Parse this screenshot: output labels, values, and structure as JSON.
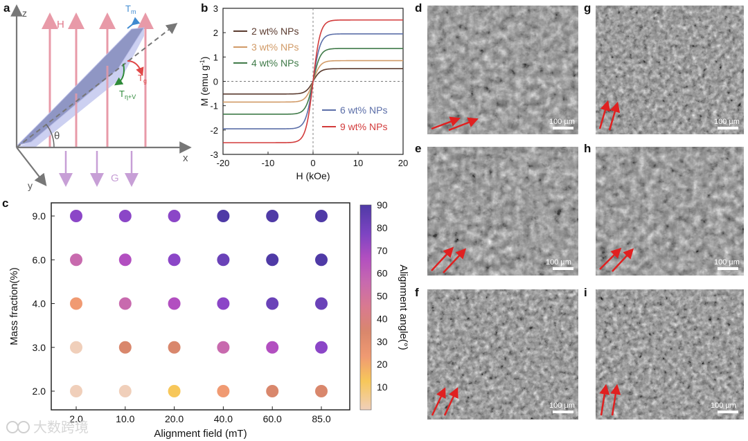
{
  "panel_labels": {
    "a": "a",
    "b": "b",
    "c": "c",
    "d": "d",
    "e": "e",
    "f": "f",
    "g": "g",
    "h": "h",
    "i": "i"
  },
  "panel_a": {
    "axis_z": "z",
    "axis_x": "x",
    "axis_y": "y",
    "label_H": "H",
    "label_G": "G",
    "label_Tm": "T",
    "label_Tm_sub": "m",
    "label_Tg": "T",
    "label_Tg_sub": "g",
    "label_Tnv": "T",
    "label_Tnv_sub": "η+V",
    "label_theta": "θ",
    "colors": {
      "field": "#e89aa8",
      "gravity": "#c79fd6",
      "plate": "#8f96c4",
      "plate_edge": "#c7cbf0",
      "Tm": "#3f8ad1",
      "Tg": "#e04848",
      "Tnv": "#2f8a3a"
    }
  },
  "panel_b_labels": {
    "x_label": "H (kOe)",
    "y_label_main": "M (emu g",
    "y_label_sup": "-1",
    "y_label_end": ")"
  },
  "panel_c_labels": {
    "x_label": "Alignment field (mT)",
    "y_label": "Mass fraction(%)",
    "colorbar_label": "Alignment angle(°)"
  },
  "sem_panels": [
    {
      "panel": "d",
      "scale_bar": "100 µm"
    },
    {
      "panel": "e",
      "scale_bar": "100 µm"
    },
    {
      "panel": "f",
      "scale_bar": "100 µm"
    },
    {
      "panel": "g",
      "scale_bar": "100 µm"
    },
    {
      "panel": "h",
      "scale_bar": "100 µm"
    },
    {
      "panel": "i",
      "scale_bar": "100 µm"
    }
  ],
  "watermark": "大数跨境",
  "chart_data": [
    {
      "panel": "b",
      "type": "line",
      "xlabel": "H (kOe)",
      "ylabel": "M (emu g-1)",
      "xlim": [
        -20,
        20
      ],
      "ylim": [
        -3,
        3
      ],
      "xticks": [
        -20,
        -10,
        0,
        10,
        20
      ],
      "yticks": [
        -3,
        -2,
        -1,
        0,
        1,
        2,
        3
      ],
      "grid": false,
      "legend_position": "left and lower-right",
      "series": [
        {
          "name": "2 wt% NPs",
          "color": "#5a3a2e",
          "saturation": 0.52
        },
        {
          "name": "3 wt% NPs",
          "color": "#d19a66",
          "saturation": 0.85
        },
        {
          "name": "4 wt% NPs",
          "color": "#3f7a48",
          "saturation": 1.35
        },
        {
          "name": "6 wt% NPs",
          "color": "#5b6ea8",
          "saturation": 1.95
        },
        {
          "name": "9 wt% NPs",
          "color": "#d23a3a",
          "saturation": 2.52
        }
      ]
    },
    {
      "panel": "c",
      "type": "scatter",
      "xlabel": "Alignment field (mT)",
      "ylabel": "Mass fraction(%)",
      "categories_x": [
        "2.0",
        "10.0",
        "20.0",
        "40.0",
        "60.0",
        "85.0"
      ],
      "categories_y": [
        "9.0",
        "6.0",
        "4.0",
        "3.0",
        "2.0"
      ],
      "colorbar": {
        "label": "Alignment angle(°)",
        "ticks": [
          10,
          20,
          30,
          40,
          50,
          60,
          70,
          80,
          90
        ],
        "range": [
          0,
          90
        ],
        "colors": [
          "#f0cfba",
          "#f7c75a",
          "#f09a72",
          "#d9876c",
          "#d97a8f",
          "#c86aae",
          "#b24fc0",
          "#8b46c7",
          "#6a42b8",
          "#4f3aa6"
        ]
      },
      "values": [
        [
          70,
          70,
          65,
          85,
          85,
          85
        ],
        [
          50,
          60,
          65,
          80,
          85,
          85
        ],
        [
          25,
          50,
          55,
          70,
          75,
          80
        ],
        [
          5,
          35,
          35,
          50,
          60,
          70
        ],
        [
          5,
          5,
          15,
          25,
          35,
          35
        ]
      ]
    }
  ]
}
